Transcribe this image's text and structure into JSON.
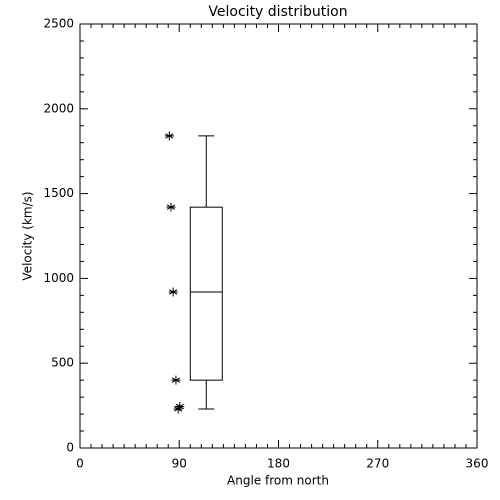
{
  "chart_data": {
    "type": "box",
    "title": "Velocity distribution",
    "x_label": "Angle from north",
    "y_label": "Velocity (km/s)",
    "xlim": [
      0,
      360
    ],
    "xticks": [
      0,
      90,
      180,
      270,
      360
    ],
    "ylim": [
      0,
      2500
    ],
    "yticks": [
      0,
      500,
      1000,
      1500,
      2000,
      2500
    ],
    "color": "#000000",
    "boxes": [
      {
        "xrange": [
          100,
          129
        ],
        "whislo": 230,
        "q1": 400,
        "med": 920,
        "q3": 1420,
        "whishi": 1840
      }
    ],
    "points": {
      "x": [
        81,
        82.5,
        84.5,
        87,
        89,
        90.5
      ],
      "y": [
        1840,
        1420,
        920,
        400,
        230,
        245
      ]
    }
  }
}
